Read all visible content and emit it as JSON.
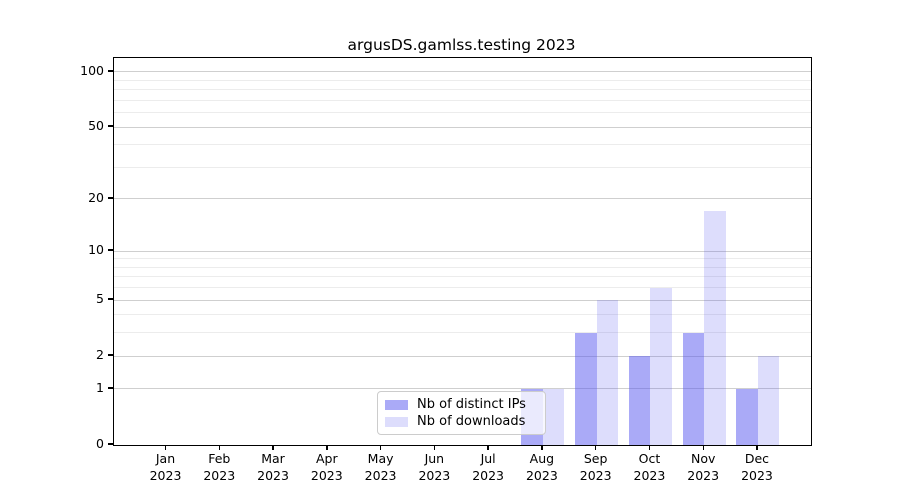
{
  "title": "argusDS.gamlss.testing 2023",
  "chart_data": {
    "type": "bar",
    "title": "argusDS.gamlss.testing 2023",
    "categories": [
      "Jan 2023",
      "Feb 2023",
      "Mar 2023",
      "Apr 2023",
      "May 2023",
      "Jun 2023",
      "Jul 2023",
      "Aug 2023",
      "Sep 2023",
      "Oct 2023",
      "Nov 2023",
      "Dec 2023"
    ],
    "months": [
      "Jan",
      "Feb",
      "Mar",
      "Apr",
      "May",
      "Jun",
      "Jul",
      "Aug",
      "Sep",
      "Oct",
      "Nov",
      "Dec"
    ],
    "year_label": "2023",
    "series": [
      {
        "name": "Nb of distinct IPs",
        "color": "rgba(85,85,240,0.5)",
        "values": [
          0,
          0,
          0,
          0,
          0,
          0,
          0,
          1,
          3,
          2,
          3,
          1
        ]
      },
      {
        "name": "Nb of downloads",
        "color": "rgba(85,85,240,0.2)",
        "values": [
          0,
          0,
          0,
          0,
          0,
          0,
          0,
          1,
          5,
          6,
          17,
          2
        ]
      }
    ],
    "xlabel": "",
    "ylabel": "",
    "yscale": "log1p",
    "yticks": [
      0,
      1,
      2,
      5,
      10,
      20,
      50,
      100
    ],
    "minor_gridlines": [
      3,
      4,
      6,
      7,
      8,
      9,
      30,
      40,
      60,
      70,
      80,
      90
    ],
    "ylim": [
      0,
      119
    ],
    "grid": true,
    "legend_position": "lower center"
  },
  "colors": {
    "bar_distinct_ips": "rgba(85,85,240,0.5)",
    "bar_downloads": "rgba(85,85,240,0.2)",
    "grid_major": "#cfcfcf",
    "grid_minor": "#ececec",
    "spine": "#000000",
    "background": "#ffffff"
  }
}
